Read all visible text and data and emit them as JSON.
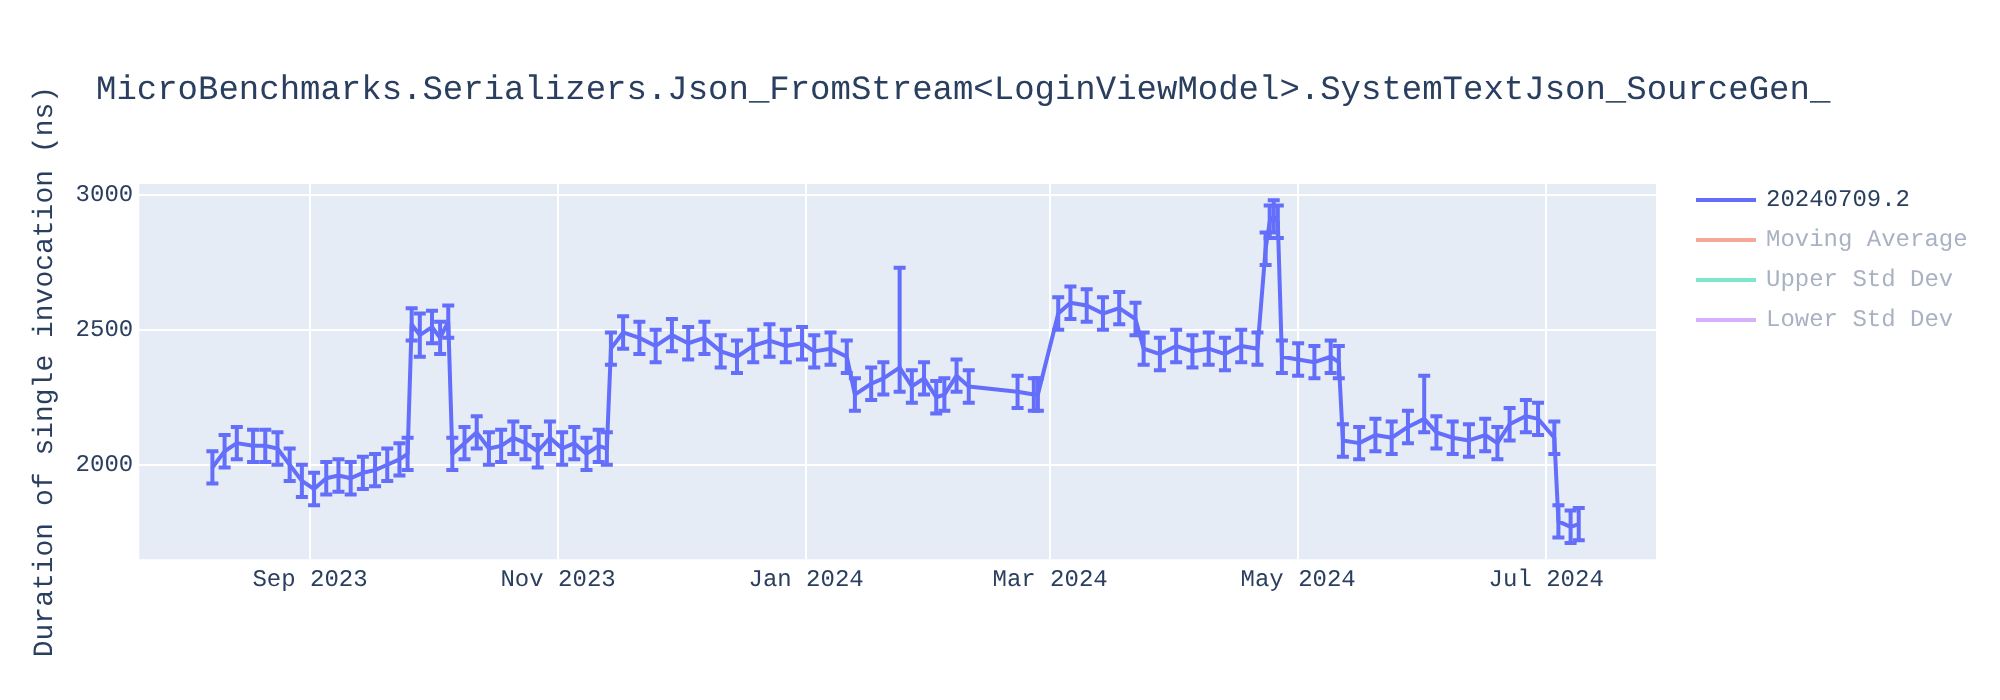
{
  "chart_data": {
    "type": "line",
    "title": "MicroBenchmarks.Serializers.Json_FromStream<LoginViewModel>.SystemTextJson_SourceGen_",
    "ylabel": "Duration of single invocation (ns)",
    "x": [
      "2023-08-08",
      "2023-08-11",
      "2023-08-14",
      "2023-08-18",
      "2023-08-21",
      "2023-08-24",
      "2023-08-27",
      "2023-08-30",
      "2023-09-02",
      "2023-09-05",
      "2023-09-08",
      "2023-09-11",
      "2023-09-14",
      "2023-09-17",
      "2023-09-20",
      "2023-09-23",
      "2023-09-25",
      "2023-09-26",
      "2023-09-28",
      "2023-10-01",
      "2023-10-03",
      "2023-10-05",
      "2023-10-06",
      "2023-10-09",
      "2023-10-12",
      "2023-10-15",
      "2023-10-18",
      "2023-10-21",
      "2023-10-24",
      "2023-10-27",
      "2023-10-30",
      "2023-11-02",
      "2023-11-05",
      "2023-11-08",
      "2023-11-11",
      "2023-11-13",
      "2023-11-14",
      "2023-11-17",
      "2023-11-21",
      "2023-11-25",
      "2023-11-29",
      "2023-12-03",
      "2023-12-07",
      "2023-12-11",
      "2023-12-15",
      "2023-12-19",
      "2023-12-23",
      "2023-12-27",
      "2023-12-31",
      "2024-01-03",
      "2024-01-07",
      "2024-01-11",
      "2024-01-13",
      "2024-01-17",
      "2024-01-20",
      "2024-01-24",
      "2024-01-27",
      "2024-01-30",
      "2024-02-02",
      "2024-02-04",
      "2024-02-07",
      "2024-02-10",
      "2024-02-22",
      "2024-02-26",
      "2024-02-27",
      "2024-03-03",
      "2024-03-06",
      "2024-03-10",
      "2024-03-14",
      "2024-03-18",
      "2024-03-22",
      "2024-03-24",
      "2024-03-28",
      "2024-04-01",
      "2024-04-05",
      "2024-04-09",
      "2024-04-13",
      "2024-04-17",
      "2024-04-21",
      "2024-04-23",
      "2024-04-24",
      "2024-04-25",
      "2024-04-26",
      "2024-04-27",
      "2024-05-01",
      "2024-05-05",
      "2024-05-09",
      "2024-05-11",
      "2024-05-12",
      "2024-05-16",
      "2024-05-20",
      "2024-05-24",
      "2024-05-28",
      "2024-06-01",
      "2024-06-04",
      "2024-06-08",
      "2024-06-12",
      "2024-06-16",
      "2024-06-19",
      "2024-06-22",
      "2024-06-26",
      "2024-06-29",
      "2024-07-03",
      "2024-07-04",
      "2024-07-07",
      "2024-07-09"
    ],
    "series": [
      {
        "name": "20240709.2",
        "color": "#636efa",
        "values": [
          1990,
          2050,
          2080,
          2070,
          2070,
          2060,
          2000,
          1940,
          1910,
          1950,
          1960,
          1950,
          1970,
          1980,
          2000,
          2020,
          2040,
          2520,
          2480,
          2510,
          2470,
          2530,
          2040,
          2080,
          2120,
          2060,
          2070,
          2100,
          2080,
          2050,
          2100,
          2060,
          2080,
          2040,
          2070,
          2060,
          2430,
          2490,
          2470,
          2440,
          2480,
          2450,
          2470,
          2420,
          2400,
          2440,
          2460,
          2440,
          2450,
          2420,
          2430,
          2400,
          2260,
          2300,
          2320,
          2360,
          2290,
          2320,
          2250,
          2260,
          2330,
          2290,
          2270,
          2260,
          2260,
          2560,
          2600,
          2590,
          2560,
          2580,
          2540,
          2430,
          2410,
          2440,
          2420,
          2430,
          2410,
          2440,
          2430,
          2800,
          2900,
          2920,
          2900,
          2400,
          2390,
          2380,
          2400,
          2380,
          2090,
          2080,
          2110,
          2100,
          2140,
          2170,
          2120,
          2100,
          2090,
          2110,
          2080,
          2150,
          2180,
          2170,
          2100,
          1790,
          1770,
          1780
        ],
        "errors": [
          60,
          60,
          60,
          60,
          60,
          60,
          60,
          60,
          60,
          60,
          60,
          60,
          60,
          60,
          60,
          60,
          60,
          60,
          80,
          60,
          60,
          60,
          60,
          60,
          60,
          60,
          60,
          60,
          60,
          60,
          60,
          60,
          60,
          60,
          60,
          60,
          60,
          60,
          60,
          60,
          60,
          60,
          60,
          60,
          60,
          60,
          60,
          60,
          60,
          60,
          60,
          60,
          60,
          60,
          60,
          [
            2270,
            2730
          ],
          60,
          60,
          60,
          60,
          60,
          60,
          60,
          60,
          60,
          60,
          60,
          60,
          60,
          60,
          60,
          60,
          60,
          60,
          60,
          60,
          60,
          60,
          60,
          60,
          60,
          60,
          60,
          60,
          60,
          60,
          60,
          60,
          60,
          60,
          60,
          60,
          60,
          [
            2120,
            2330
          ],
          60,
          60,
          60,
          60,
          60,
          60,
          60,
          60,
          60,
          60,
          60,
          60
        ]
      },
      {
        "name": "Moving Average",
        "color": "#f5a897",
        "values": [
          null,
          null,
          null,
          null,
          null,
          null,
          null,
          null,
          null,
          null,
          null,
          null,
          null,
          null,
          null,
          null,
          null,
          null,
          null,
          null,
          null,
          null,
          null,
          null,
          null,
          null,
          null,
          null,
          null,
          null,
          null,
          null,
          null,
          null,
          null,
          null,
          null,
          null,
          null,
          null,
          null,
          null,
          null,
          null,
          null,
          null,
          null,
          null,
          null,
          null,
          null,
          null,
          null,
          null,
          null,
          null,
          null,
          null,
          null,
          null,
          null,
          null,
          null,
          null,
          null,
          null,
          null,
          null,
          null,
          null,
          null,
          null,
          null,
          null,
          null,
          null,
          null,
          null,
          null,
          null,
          null,
          null,
          null,
          null,
          null,
          null,
          null,
          null,
          null,
          null,
          null,
          null,
          null,
          null,
          null,
          null,
          null,
          null,
          null,
          null,
          null,
          null,
          null,
          null,
          null,
          null
        ]
      },
      {
        "name": "Upper Std Dev",
        "color": "#80e6cb",
        "values": [
          null,
          null,
          null,
          null,
          null,
          null,
          null,
          null,
          null,
          null,
          null,
          null,
          null,
          null,
          null,
          null,
          null,
          null,
          null,
          null,
          null,
          null,
          null,
          null,
          null,
          null,
          null,
          null,
          null,
          null,
          null,
          null,
          null,
          null,
          null,
          null,
          null,
          null,
          null,
          null,
          null,
          null,
          null,
          null,
          null,
          null,
          null,
          null,
          null,
          null,
          null,
          null,
          null,
          null,
          null,
          null,
          null,
          null,
          null,
          null,
          null,
          null,
          null,
          null,
          null,
          null,
          null,
          null,
          null,
          null,
          null,
          null,
          null,
          null,
          null,
          null,
          null,
          null,
          null,
          null,
          null,
          null,
          null,
          null,
          null,
          null,
          null,
          null,
          null,
          null,
          null,
          null,
          null,
          null,
          null,
          null,
          null,
          null,
          null,
          null,
          null,
          null,
          null,
          null,
          null,
          null
        ]
      },
      {
        "name": "Lower Std Dev",
        "color": "#d5b1fd",
        "values": [
          null,
          null,
          null,
          null,
          null,
          null,
          null,
          null,
          null,
          null,
          null,
          null,
          null,
          null,
          null,
          null,
          null,
          null,
          null,
          null,
          null,
          null,
          null,
          null,
          null,
          null,
          null,
          null,
          null,
          null,
          null,
          null,
          null,
          null,
          null,
          null,
          null,
          null,
          null,
          null,
          null,
          null,
          null,
          null,
          null,
          null,
          null,
          null,
          null,
          null,
          null,
          null,
          null,
          null,
          null,
          null,
          null,
          null,
          null,
          null,
          null,
          null,
          null,
          null,
          null,
          null,
          null,
          null,
          null,
          null,
          null,
          null,
          null,
          null,
          null,
          null,
          null,
          null,
          null,
          null,
          null,
          null,
          null,
          null,
          null,
          null,
          null,
          null,
          null,
          null,
          null,
          null,
          null,
          null,
          null,
          null,
          null,
          null,
          null,
          null,
          null,
          null,
          null,
          null,
          null,
          null
        ]
      }
    ],
    "xlim": [
      "2023-07-21",
      "2024-07-28"
    ],
    "xticks": [
      {
        "value": "2023-09-01",
        "label": "Sep 2023"
      },
      {
        "value": "2023-11-01",
        "label": "Nov 2023"
      },
      {
        "value": "2024-01-01",
        "label": "Jan 2024"
      },
      {
        "value": "2024-03-01",
        "label": "Mar 2024"
      },
      {
        "value": "2024-05-01",
        "label": "May 2024"
      },
      {
        "value": "2024-07-01",
        "label": "Jul 2024"
      }
    ],
    "ylim": [
      1650,
      3040
    ],
    "yticks": [
      2000,
      2500,
      3000
    ],
    "grid": true,
    "legend": "top right",
    "line_style": "solid"
  }
}
